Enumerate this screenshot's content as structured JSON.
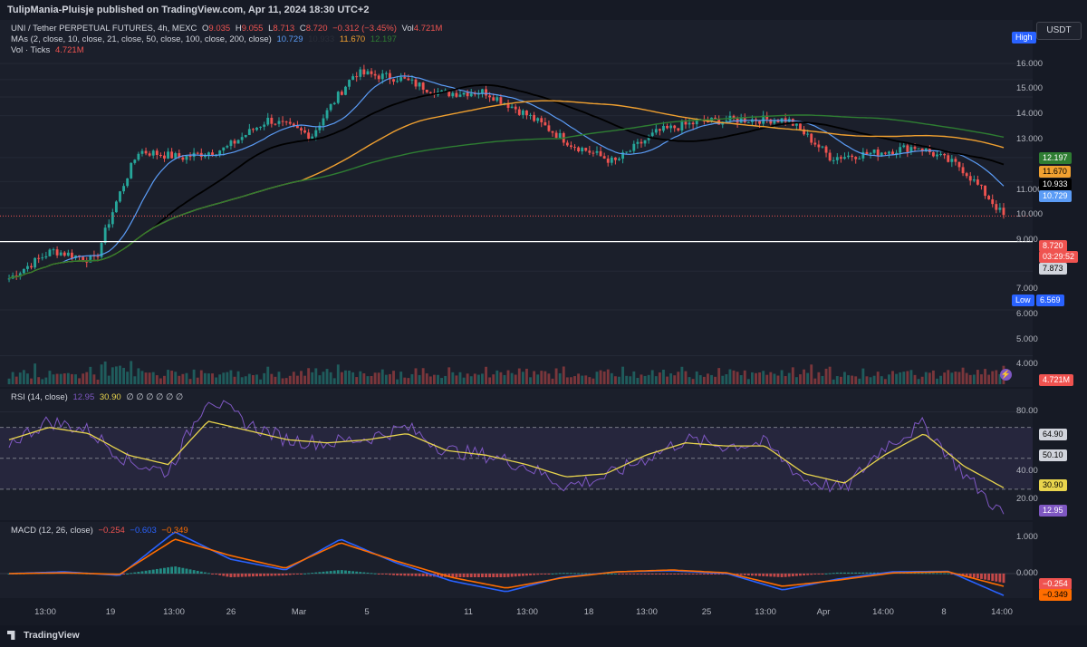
{
  "header": {
    "publisher": "TulipMania-Pluisje published on TradingView.com, Apr 11, 2024 18:30 UTC+2"
  },
  "main_legend": {
    "symbol": "UNI / Tether PERPETUAL FUTURES, 4h, MEXC",
    "o_label": "O",
    "o_value": "9.035",
    "h_label": "H",
    "h_value": "9.055",
    "l_label": "L",
    "l_value": "8.713",
    "c_label": "C",
    "c_value": "8.720",
    "change": "−0.312 (−3.45%)",
    "vol_label": "Vol",
    "vol_value": "4.721M",
    "ma_label": "MAs (2, close, 10, close, 21, close, 50, close, 100, close, 200, close)",
    "ma_vals": [
      "10.729",
      "10.933",
      "11.670",
      "12.197"
    ],
    "vol_ticks_label": "Vol · Ticks",
    "vol_ticks_value": "4.721M"
  },
  "currency_button": "USDT",
  "price_axis": {
    "ticks": [
      "16.000",
      "15.000",
      "14.000",
      "13.000",
      "11.000",
      "10.000",
      "9.000",
      "7.000",
      "6.000",
      "5.000",
      "4.000"
    ],
    "high_label": "High",
    "low_label": "Low",
    "low_value": "6.569",
    "tag_ma200": "12.197",
    "tag_ma100": "11.670",
    "tag_ma50": "10.933",
    "tag_ma21": "10.729",
    "tag_last": "8.720",
    "tag_countdown": "03:29:52",
    "tag_hline": "7.873",
    "tag_vol": "4.721M"
  },
  "rsi": {
    "legend_label": "RSI (14, close)",
    "rsi_value": "12.95",
    "ma_value": "30.90",
    "placeholders": "∅ ∅ ∅ ∅ ∅ ∅",
    "ticks": [
      "80.00",
      "40.00",
      "20.00"
    ],
    "tag_70": "64.90",
    "tag_50": "50.10",
    "tag_ma": "30.90",
    "tag_rsi": "12.95"
  },
  "macd": {
    "legend_label": "MACD (12, 26, close)",
    "hist_value": "−0.254",
    "macd_value": "−0.603",
    "signal_value": "−0.349",
    "ticks": [
      "1.000",
      "0.000"
    ],
    "tag_hist": "−0.254",
    "tag_signal": "−0.349"
  },
  "time_axis": {
    "labels": [
      "13:00",
      "19",
      "13:00",
      "26",
      "Mar",
      "5",
      "11",
      "13:00",
      "18",
      "13:00",
      "25",
      "13:00",
      "Apr",
      "14:00",
      "8",
      "14:00"
    ]
  },
  "footer": {
    "brand": "TradingView"
  },
  "colors": {
    "up": "#26a69a",
    "down": "#ef5350",
    "ma2": "#5b9cf6",
    "ma50": "#000000",
    "ma100": "#f0a030",
    "ma200": "#2e7d32",
    "rsi": "#7e57c2",
    "rsi_ma": "#e8d44d",
    "macd": "#2962ff",
    "signal": "#ff6d00"
  },
  "chart_data": [
    {
      "type": "candlestick",
      "title": "UNI / Tether PERPETUAL FUTURES, 4h, MEXC",
      "ylim": [
        3.5,
        17.0
      ],
      "scale": "log",
      "close_path": [
        {
          "x": "Feb 12",
          "y": 6.8
        },
        {
          "x": "Feb 19",
          "y": 7.6
        },
        {
          "x": "Feb 22",
          "y": 7.3
        },
        {
          "x": "Feb 23",
          "y": 11.3
        },
        {
          "x": "Feb 26",
          "y": 11.0
        },
        {
          "x": "Mar 1",
          "y": 11.4
        },
        {
          "x": "Mar 3",
          "y": 12.8
        },
        {
          "x": "Mar 5",
          "y": 12.0
        },
        {
          "x": "Mar 6",
          "y": 15.4
        },
        {
          "x": "Mar 8",
          "y": 15.1
        },
        {
          "x": "Mar 11",
          "y": 14.2
        },
        {
          "x": "Mar 13",
          "y": 14.3
        },
        {
          "x": "Mar 15",
          "y": 13.0
        },
        {
          "x": "Mar 18",
          "y": 11.6
        },
        {
          "x": "Mar 20",
          "y": 10.8
        },
        {
          "x": "Mar 22",
          "y": 12.2
        },
        {
          "x": "Mar 25",
          "y": 12.7
        },
        {
          "x": "Mar 28",
          "y": 12.8
        },
        {
          "x": "Apr 1",
          "y": 12.8
        },
        {
          "x": "Apr 3",
          "y": 11.0
        },
        {
          "x": "Apr 5",
          "y": 11.2
        },
        {
          "x": "Apr 8",
          "y": 11.5
        },
        {
          "x": "Apr 10",
          "y": 10.6
        },
        {
          "x": "Apr 11",
          "y": 8.72
        }
      ],
      "horizontal_line": 7.873,
      "high": "High",
      "low": 6.569
    },
    {
      "type": "line",
      "title": "RSI (14, close)",
      "ylim": [
        10,
        95
      ],
      "bands": [
        70,
        50,
        30
      ],
      "series": [
        {
          "name": "RSI",
          "values": [
            60,
            74,
            68,
            48,
            41,
            90,
            72,
            62,
            60,
            63,
            70,
            55,
            52,
            45,
            32,
            38,
            50,
            62,
            58,
            60,
            36,
            30,
            58,
            72,
            40,
            12.95
          ]
        },
        {
          "name": "MA",
          "values": [
            62,
            70,
            66,
            52,
            46,
            74,
            68,
            62,
            60,
            62,
            66,
            55,
            52,
            46,
            38,
            40,
            52,
            60,
            58,
            58,
            40,
            34,
            52,
            66,
            45,
            30.9
          ]
        }
      ]
    },
    {
      "type": "line",
      "title": "MACD (12, 26, close)",
      "ylim": [
        -0.8,
        1.4
      ],
      "series": [
        {
          "name": "MACD",
          "values": [
            0.0,
            0.05,
            -0.05,
            1.15,
            0.4,
            0.1,
            0.95,
            0.3,
            -0.2,
            -0.5,
            -0.1,
            0.05,
            0.08,
            0.0,
            -0.45,
            -0.15,
            0.05,
            0.06,
            -0.603
          ]
        },
        {
          "name": "Signal",
          "values": [
            0.0,
            0.02,
            -0.02,
            0.95,
            0.5,
            0.15,
            0.85,
            0.35,
            -0.1,
            -0.4,
            -0.12,
            0.05,
            0.1,
            0.02,
            -0.35,
            -0.18,
            0.02,
            0.05,
            -0.349
          ]
        },
        {
          "name": "Histogram",
          "values": [
            0.0,
            0.03,
            -0.03,
            0.2,
            -0.1,
            -0.05,
            0.1,
            -0.05,
            -0.1,
            -0.1,
            0.02,
            0.0,
            -0.02,
            -0.02,
            -0.1,
            0.03,
            0.03,
            0.01,
            -0.254
          ]
        }
      ]
    }
  ]
}
